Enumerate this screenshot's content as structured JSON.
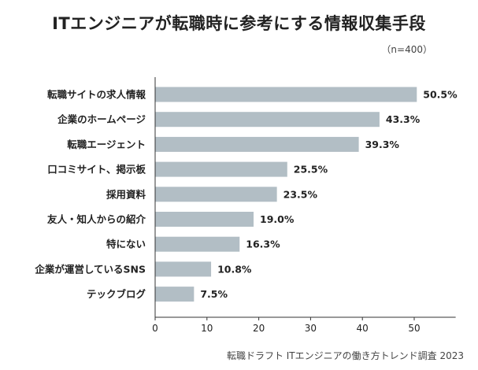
{
  "chart_data": {
    "type": "bar",
    "orientation": "horizontal",
    "title": "ITエンジニアが転職時に参考にする情報収集手段",
    "sample_size": "（n=400）",
    "categories": [
      "転職サイトの求人情報",
      "企業のホームページ",
      "転職エージェント",
      "口コミサイト、掲示板",
      "採用資料",
      "友人・知人からの紹介",
      "特にない",
      "企業が運営しているSNS",
      "テックブログ"
    ],
    "values": [
      50.5,
      43.3,
      39.3,
      25.5,
      23.5,
      19.0,
      16.3,
      10.8,
      7.5
    ],
    "value_labels": [
      "50.5%",
      "43.3%",
      "39.3%",
      "25.5%",
      "23.5%",
      "19.0%",
      "16.3%",
      "10.8%",
      "7.5%"
    ],
    "xticks": [
      0,
      10,
      20,
      30,
      40,
      50
    ],
    "xlim": [
      0,
      58
    ],
    "grid": false,
    "xlabel": "",
    "ylabel": "",
    "source": "転職ドラフト ITエンジニアの働き方トレンド調査 2023",
    "colors": {
      "bar": "#b2bec5",
      "axis": "#333333",
      "text": "#222222"
    }
  }
}
